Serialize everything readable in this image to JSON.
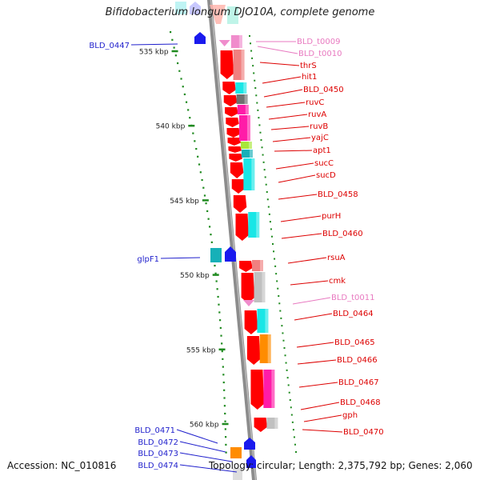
{
  "title": "Bifidobacterium longum DJO10A, complete genome",
  "accession_text": "Accession: NC_010816",
  "summary_text": "Topology: circular; Length: 2,375,792 bp; Genes: 2,060",
  "ruler": [
    {
      "label": "535 kbp",
      "t": 0.071
    },
    {
      "label": "540 kbp",
      "t": 0.264
    },
    {
      "label": "545 kbp",
      "t": 0.457
    },
    {
      "label": "550 kbp",
      "t": 0.65
    },
    {
      "label": "555 kbp",
      "t": 0.843
    },
    {
      "label": "560 kbp",
      "t": 1.036
    }
  ],
  "left_labels": [
    {
      "name": "BLD_0447",
      "t": 0.04,
      "color": "#1f1fcc"
    },
    {
      "name": "glpF1",
      "t": 0.605,
      "color": "#1f1fcc"
    },
    {
      "name": "BLD_0471",
      "t": 1.055,
      "color": "#1f1fcc"
    },
    {
      "name": "BLD_0472",
      "t": 1.085,
      "color": "#1f1fcc"
    },
    {
      "name": "BLD_0473",
      "t": 1.115,
      "color": "#1f1fcc"
    },
    {
      "name": "BLD_0474",
      "t": 1.145,
      "color": "#1f1fcc"
    }
  ],
  "right_labels": [
    {
      "name": "BLD_t0009",
      "color": "#e879c0"
    },
    {
      "name": "BLD_t0010",
      "color": "#e879c0"
    },
    {
      "name": "thrS",
      "color": "#dd0000"
    },
    {
      "name": "hit1",
      "color": "#dd0000"
    },
    {
      "name": "BLD_0450",
      "color": "#dd0000"
    },
    {
      "name": "ruvC",
      "color": "#dd0000"
    },
    {
      "name": "ruvA",
      "color": "#dd0000"
    },
    {
      "name": "ruvB",
      "color": "#dd0000"
    },
    {
      "name": "yajC",
      "color": "#dd0000"
    },
    {
      "name": "apt1",
      "color": "#dd0000"
    },
    {
      "name": "sucC",
      "color": "#dd0000"
    },
    {
      "name": "sucD",
      "color": "#dd0000"
    },
    {
      "name": "BLD_0458",
      "color": "#dd0000"
    },
    {
      "name": "purH",
      "color": "#dd0000"
    },
    {
      "name": "BLD_0460",
      "color": "#dd0000"
    },
    {
      "name": "rsuA",
      "color": "#dd0000"
    },
    {
      "name": "cmk",
      "color": "#dd0000"
    },
    {
      "name": "BLD_t0011",
      "color": "#e879c0"
    },
    {
      "name": "BLD_0464",
      "color": "#dd0000"
    },
    {
      "name": "BLD_0465",
      "color": "#dd0000"
    },
    {
      "name": "BLD_0466",
      "color": "#dd0000"
    },
    {
      "name": "BLD_0467",
      "color": "#dd0000"
    },
    {
      "name": "BLD_0468",
      "color": "#dd0000"
    },
    {
      "name": "gph",
      "color": "#dd0000"
    },
    {
      "name": "BLD_0470",
      "color": "#dd0000"
    }
  ],
  "colors": {
    "backbone": "#8c8c8c",
    "forward_gene": "#ff0000",
    "reverse_gene": "#1a1aee",
    "trna": "#f08ccc",
    "ruler_tick": "#1f8a1f",
    "cyan": "#19e6e6",
    "teal": "#16b0b8",
    "magenta": "#ff1ca8",
    "orange": "#ff8c00",
    "gray": "#c0c0c0",
    "dark_gray": "#707070",
    "salmon": "#f08080",
    "lime": "#a8e63a"
  }
}
